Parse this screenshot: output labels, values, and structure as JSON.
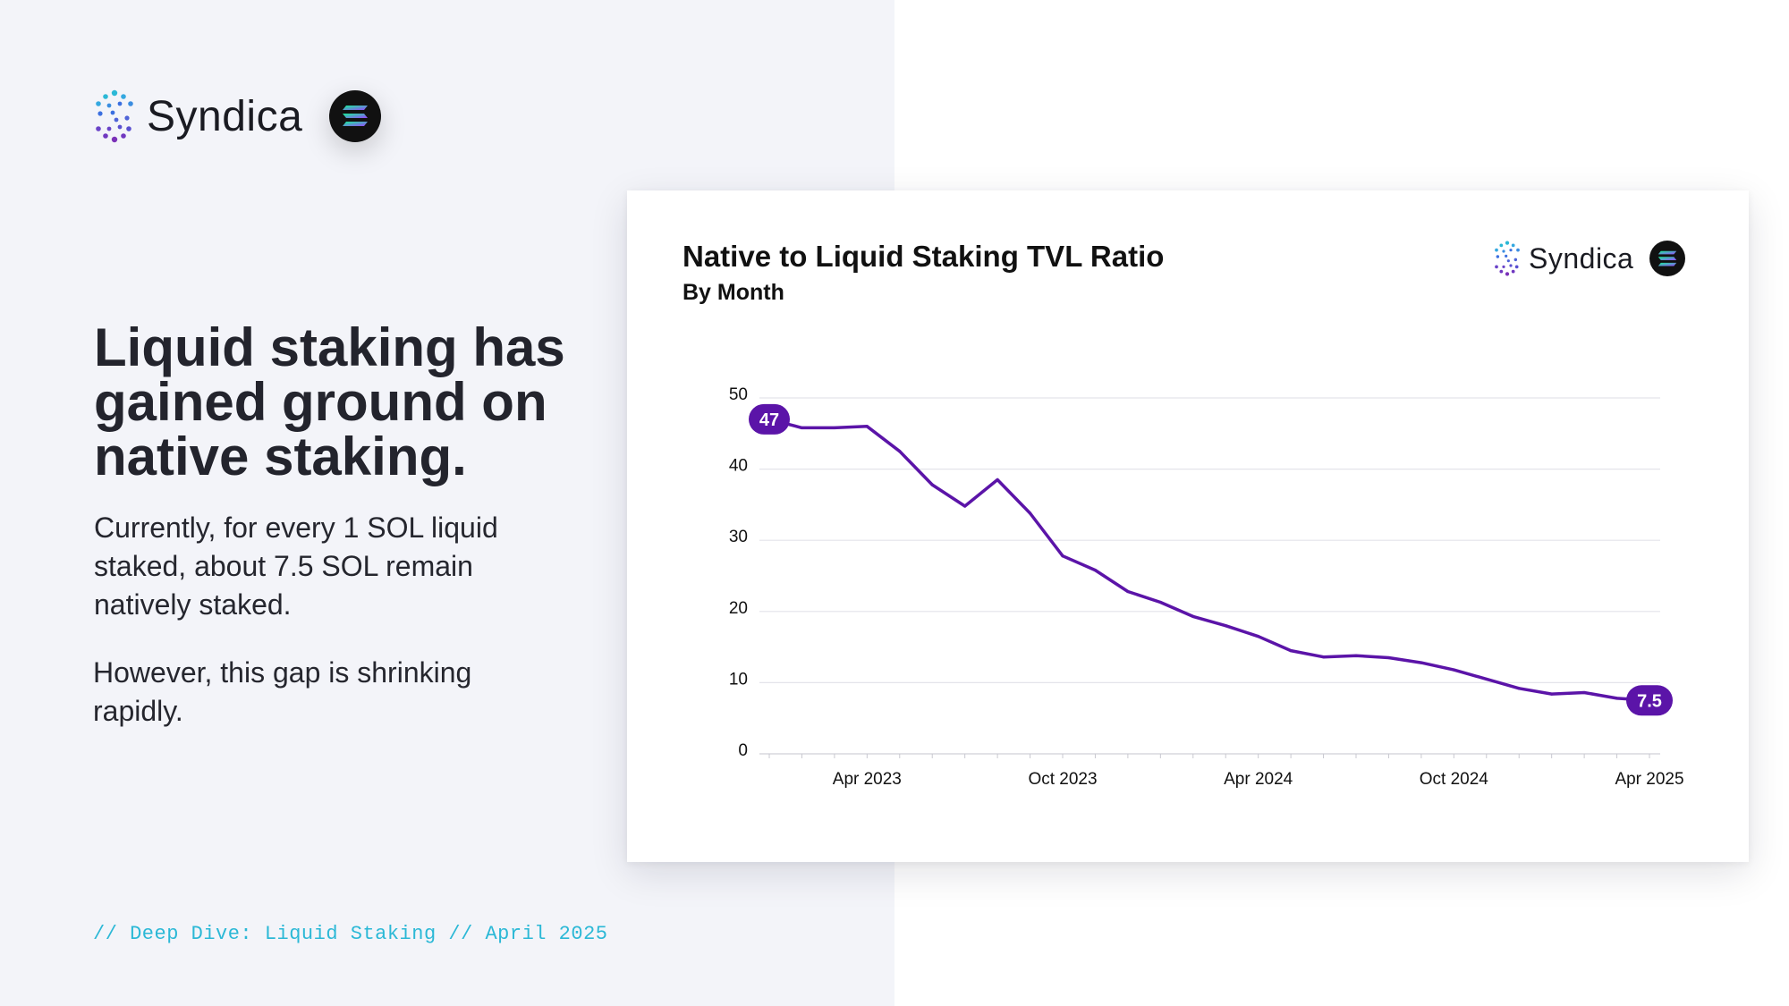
{
  "brand": {
    "name": "Syndica"
  },
  "headline": "Liquid staking has gained ground on native staking.",
  "paragraph1": "Currently, for every 1 SOL liquid staked, about 7.5 SOL remain natively staked.",
  "paragraph2": "However, this gap is shrinking rapidly.",
  "footer": "// Deep Dive: Liquid Staking // April 2025",
  "colors": {
    "line": "#5b14a8",
    "label_bg": "#5b14a8",
    "grid": "#e4e4ea",
    "footer": "#2bb8d6"
  },
  "chart_data": {
    "type": "line",
    "title": "Native to Liquid Staking TVL Ratio",
    "subtitle": "By Month",
    "xlabel": "",
    "ylabel": "",
    "ylim": [
      0,
      50
    ],
    "yticks": [
      "0",
      "10",
      "20",
      "30",
      "40",
      "50"
    ],
    "xtick_labels": [
      {
        "label": "Apr 2023",
        "index": 3
      },
      {
        "label": "Oct 2023",
        "index": 9
      },
      {
        "label": "Apr 2024",
        "index": 15
      },
      {
        "label": "Oct 2024",
        "index": 21
      },
      {
        "label": "Apr 2025",
        "index": 27
      }
    ],
    "x": [
      "Jan 2023",
      "Feb 2023",
      "Mar 2023",
      "Apr 2023",
      "May 2023",
      "Jun 2023",
      "Jul 2023",
      "Aug 2023",
      "Sep 2023",
      "Oct 2023",
      "Nov 2023",
      "Dec 2023",
      "Jan 2024",
      "Feb 2024",
      "Mar 2024",
      "Apr 2024",
      "May 2024",
      "Jun 2024",
      "Jul 2024",
      "Aug 2024",
      "Sep 2024",
      "Oct 2024",
      "Nov 2024",
      "Dec 2024",
      "Jan 2025",
      "Feb 2025",
      "Mar 2025",
      "Apr 2025"
    ],
    "series": [
      {
        "name": "Native to Liquid Staking TVL Ratio",
        "values": [
          47,
          45.8,
          45.8,
          46,
          42.5,
          37.8,
          34.8,
          38.5,
          33.8,
          27.8,
          25.8,
          22.8,
          21.3,
          19.3,
          18,
          16.5,
          14.5,
          13.6,
          13.8,
          13.5,
          12.8,
          11.8,
          10.5,
          9.2,
          8.4,
          8.6,
          7.8,
          7.5
        ]
      }
    ],
    "labels": [
      {
        "index": 0,
        "text": "47"
      },
      {
        "index": 27,
        "text": "7.5"
      }
    ]
  }
}
